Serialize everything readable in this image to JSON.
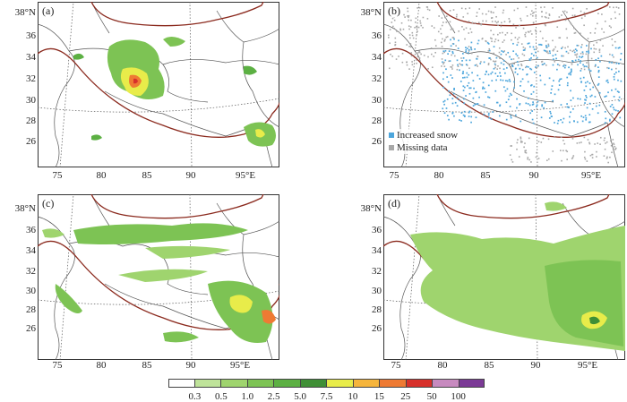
{
  "panels": [
    {
      "id": "a",
      "label": "(a)",
      "lat_labels": [
        "38°N",
        "36",
        "34",
        "32",
        "30",
        "28",
        "26"
      ],
      "lon_labels": [
        "75",
        "80",
        "85",
        "90",
        "95°E"
      ]
    },
    {
      "id": "b",
      "label": "(b)",
      "lat_labels": [
        "38°N",
        "36",
        "34",
        "32",
        "30",
        "28",
        "26"
      ],
      "lon_labels": [
        "75",
        "80",
        "85",
        "90",
        "95°E"
      ],
      "legend": [
        {
          "label": "Increased snow",
          "color": "#4da6dc"
        },
        {
          "label": "Missing data",
          "color": "#a8a8a8"
        }
      ]
    },
    {
      "id": "c",
      "label": "(c)",
      "lat_labels": [
        "38°N",
        "36",
        "34",
        "32",
        "30",
        "28",
        "26"
      ],
      "lon_labels": [
        "75",
        "80",
        "85",
        "90",
        "95°E"
      ]
    },
    {
      "id": "d",
      "label": "(d)",
      "lat_labels": [
        "38°N",
        "36",
        "34",
        "32",
        "30",
        "28",
        "26"
      ],
      "lon_labels": [
        "75",
        "80",
        "85",
        "90",
        "95°E"
      ]
    }
  ],
  "colorbar": {
    "colors": [
      "#ffffff",
      "#bfe39a",
      "#9fd46e",
      "#7dc354",
      "#5cb043",
      "#3f8f36",
      "#e8ec4a",
      "#f6b53c",
      "#ee7a33",
      "#d7302b",
      "#c78abf",
      "#7b3a96"
    ],
    "labels": [
      "0.3",
      "0.5",
      "1.0",
      "2.5",
      "5.0",
      "7.5",
      "10",
      "15",
      "25",
      "50",
      "100"
    ]
  },
  "line_colors": {
    "boundary": "#8b2a1e",
    "border": "#555555",
    "graticule": "#555555"
  }
}
